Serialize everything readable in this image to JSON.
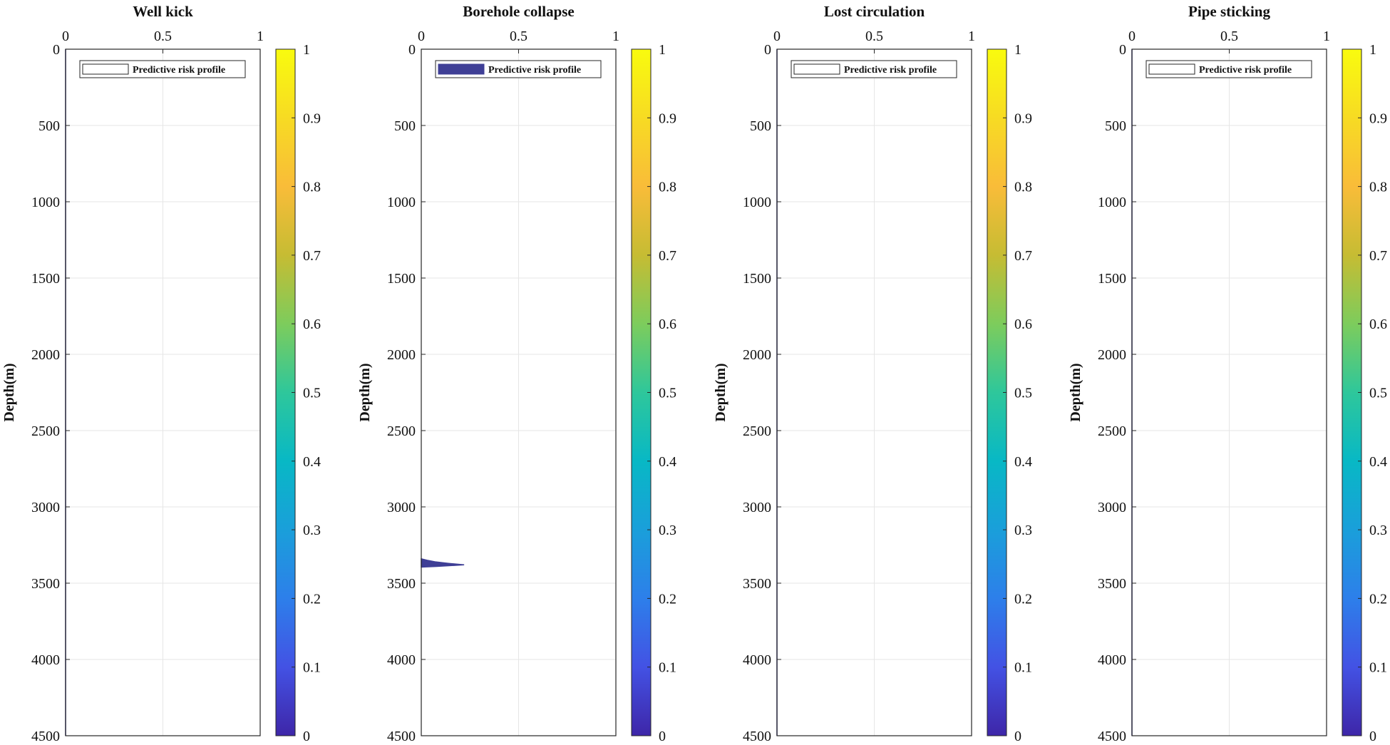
{
  "chart_data": [
    {
      "type": "area",
      "title": "Well kick",
      "ylabel": "Depth(m)",
      "xlabel": "",
      "xlim": [
        0,
        1
      ],
      "ylim": [
        0,
        4500
      ],
      "y_reversed": true,
      "xticks": [
        0,
        0.5,
        1
      ],
      "xtick_labels": [
        "0",
        "0.5",
        "1"
      ],
      "yticks": [
        0,
        500,
        1000,
        1500,
        2000,
        2500,
        3000,
        3500,
        4000,
        4500
      ],
      "ytick_labels": [
        "0",
        "500",
        "1000",
        "1500",
        "2000",
        "2500",
        "3000",
        "3500",
        "4000",
        "4500"
      ],
      "grid": true,
      "legend": {
        "label": "Predictive risk profile",
        "location": "top"
      },
      "series": [
        {
          "name": "Predictive risk profile",
          "depth": [
            0,
            4500
          ],
          "values": [
            0,
            0
          ]
        }
      ],
      "colorbar": {
        "min": 0,
        "max": 1,
        "ticks": [
          0,
          0.1,
          0.2,
          0.3,
          0.4,
          0.5,
          0.6,
          0.7,
          0.8,
          0.9,
          1
        ],
        "tick_labels": [
          "0",
          "0.1",
          "0.2",
          "0.3",
          "0.4",
          "0.5",
          "0.6",
          "0.7",
          "0.8",
          "0.9",
          "1"
        ]
      }
    },
    {
      "type": "area",
      "title": "Borehole collapse",
      "ylabel": "Depth(m)",
      "xlabel": "",
      "xlim": [
        0,
        1
      ],
      "ylim": [
        0,
        4500
      ],
      "y_reversed": true,
      "xticks": [
        0,
        0.5,
        1
      ],
      "xtick_labels": [
        "0",
        "0.5",
        "1"
      ],
      "yticks": [
        0,
        500,
        1000,
        1500,
        2000,
        2500,
        3000,
        3500,
        4000,
        4500
      ],
      "ytick_labels": [
        "0",
        "500",
        "1000",
        "1500",
        "2000",
        "2500",
        "3000",
        "3500",
        "4000",
        "4500"
      ],
      "grid": true,
      "legend": {
        "label": "Predictive risk profile",
        "location": "top"
      },
      "series": [
        {
          "name": "Predictive risk profile",
          "depth": [
            3340,
            3350,
            3360,
            3370,
            3380,
            3390,
            3395
          ],
          "values": [
            0,
            0.03,
            0.07,
            0.14,
            0.22,
            0.08,
            0
          ]
        }
      ],
      "colorbar": {
        "min": 0,
        "max": 1,
        "ticks": [
          0,
          0.1,
          0.2,
          0.3,
          0.4,
          0.5,
          0.6,
          0.7,
          0.8,
          0.9,
          1
        ],
        "tick_labels": [
          "0",
          "0.1",
          "0.2",
          "0.3",
          "0.4",
          "0.5",
          "0.6",
          "0.7",
          "0.8",
          "0.9",
          "1"
        ]
      }
    },
    {
      "type": "area",
      "title": "Lost circulation",
      "ylabel": "Depth(m)",
      "xlabel": "",
      "xlim": [
        0,
        1
      ],
      "ylim": [
        0,
        4500
      ],
      "y_reversed": true,
      "xticks": [
        0,
        0.5,
        1
      ],
      "xtick_labels": [
        "0",
        "0.5",
        "1"
      ],
      "yticks": [
        0,
        500,
        1000,
        1500,
        2000,
        2500,
        3000,
        3500,
        4000,
        4500
      ],
      "ytick_labels": [
        "0",
        "500",
        "1000",
        "1500",
        "2000",
        "2500",
        "3000",
        "3500",
        "4000",
        "4500"
      ],
      "grid": true,
      "legend": {
        "label": "Predictive risk profile",
        "location": "top"
      },
      "series": [
        {
          "name": "Predictive risk profile",
          "depth": [
            0,
            4500
          ],
          "values": [
            0,
            0
          ]
        }
      ],
      "colorbar": {
        "min": 0,
        "max": 1,
        "ticks": [
          0,
          0.1,
          0.2,
          0.3,
          0.4,
          0.5,
          0.6,
          0.7,
          0.8,
          0.9,
          1
        ],
        "tick_labels": [
          "0",
          "0.1",
          "0.2",
          "0.3",
          "0.4",
          "0.5",
          "0.6",
          "0.7",
          "0.8",
          "0.9",
          "1"
        ]
      }
    },
    {
      "type": "area",
      "title": "Pipe sticking",
      "ylabel": "Depth(m)",
      "xlabel": "",
      "xlim": [
        0,
        1
      ],
      "ylim": [
        0,
        4500
      ],
      "y_reversed": true,
      "xticks": [
        0,
        0.5,
        1
      ],
      "xtick_labels": [
        "0",
        "0.5",
        "1"
      ],
      "yticks": [
        0,
        500,
        1000,
        1500,
        2000,
        2500,
        3000,
        3500,
        4000,
        4500
      ],
      "ytick_labels": [
        "0",
        "500",
        "1000",
        "1500",
        "2000",
        "2500",
        "3000",
        "3500",
        "4000",
        "4500"
      ],
      "grid": true,
      "legend": {
        "label": "Predictive risk profile",
        "location": "top"
      },
      "series": [
        {
          "name": "Predictive risk profile",
          "depth": [
            0,
            4500
          ],
          "values": [
            0,
            0
          ]
        }
      ],
      "colorbar": {
        "min": 0,
        "max": 1,
        "ticks": [
          0,
          0.1,
          0.2,
          0.3,
          0.4,
          0.5,
          0.6,
          0.7,
          0.8,
          0.9,
          1
        ],
        "tick_labels": [
          "0",
          "0.1",
          "0.2",
          "0.3",
          "0.4",
          "0.5",
          "0.6",
          "0.7",
          "0.8",
          "0.9",
          "1"
        ]
      }
    }
  ],
  "colors": {
    "axis": "#262626",
    "grid": "#e6e6e6",
    "fill": "#3f3f96",
    "colormap": [
      "#3e26a8",
      "#4352e4",
      "#2d7fea",
      "#1a9fda",
      "#08b8c5",
      "#2ec79b",
      "#7dcc5c",
      "#c6bc33",
      "#f9bc39",
      "#f7db23",
      "#f9fb0e"
    ]
  }
}
